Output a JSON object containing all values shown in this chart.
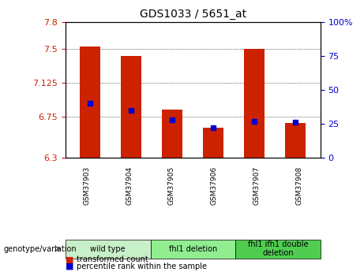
{
  "title": "GDS1033 / 5651_at",
  "samples": [
    "GSM37903",
    "GSM37904",
    "GSM37905",
    "GSM37906",
    "GSM37907",
    "GSM37908"
  ],
  "red_values": [
    7.53,
    7.42,
    6.83,
    6.63,
    7.5,
    6.68
  ],
  "blue_values_pct": [
    40,
    35,
    28,
    22,
    27,
    26
  ],
  "y_min": 6.3,
  "y_max": 7.8,
  "y_ticks": [
    6.3,
    6.75,
    7.125,
    7.5,
    7.8
  ],
  "y_tick_labels": [
    "6.3",
    "6.75",
    "7.125",
    "7.5",
    "7.8"
  ],
  "y2_ticks": [
    0,
    25,
    50,
    75,
    100
  ],
  "y2_tick_labels": [
    "0",
    "25",
    "50",
    "75",
    "100%"
  ],
  "groups": [
    {
      "label": "wild type",
      "indices": [
        0,
        1
      ],
      "color": "#c8f0c8"
    },
    {
      "label": "fhl1 deletion",
      "indices": [
        2,
        3
      ],
      "color": "#90ee90"
    },
    {
      "label": "fhl1 ifh1 double\ndeletion",
      "indices": [
        4,
        5
      ],
      "color": "#50cd50"
    }
  ],
  "bar_color": "#cc2200",
  "dot_color": "#0000cc",
  "xlabel_genotype": "genotype/variation",
  "legend_red": "transformed count",
  "legend_blue": "percentile rank within the sample",
  "bg_color": "#f0f0f0",
  "plot_bg": "#ffffff"
}
